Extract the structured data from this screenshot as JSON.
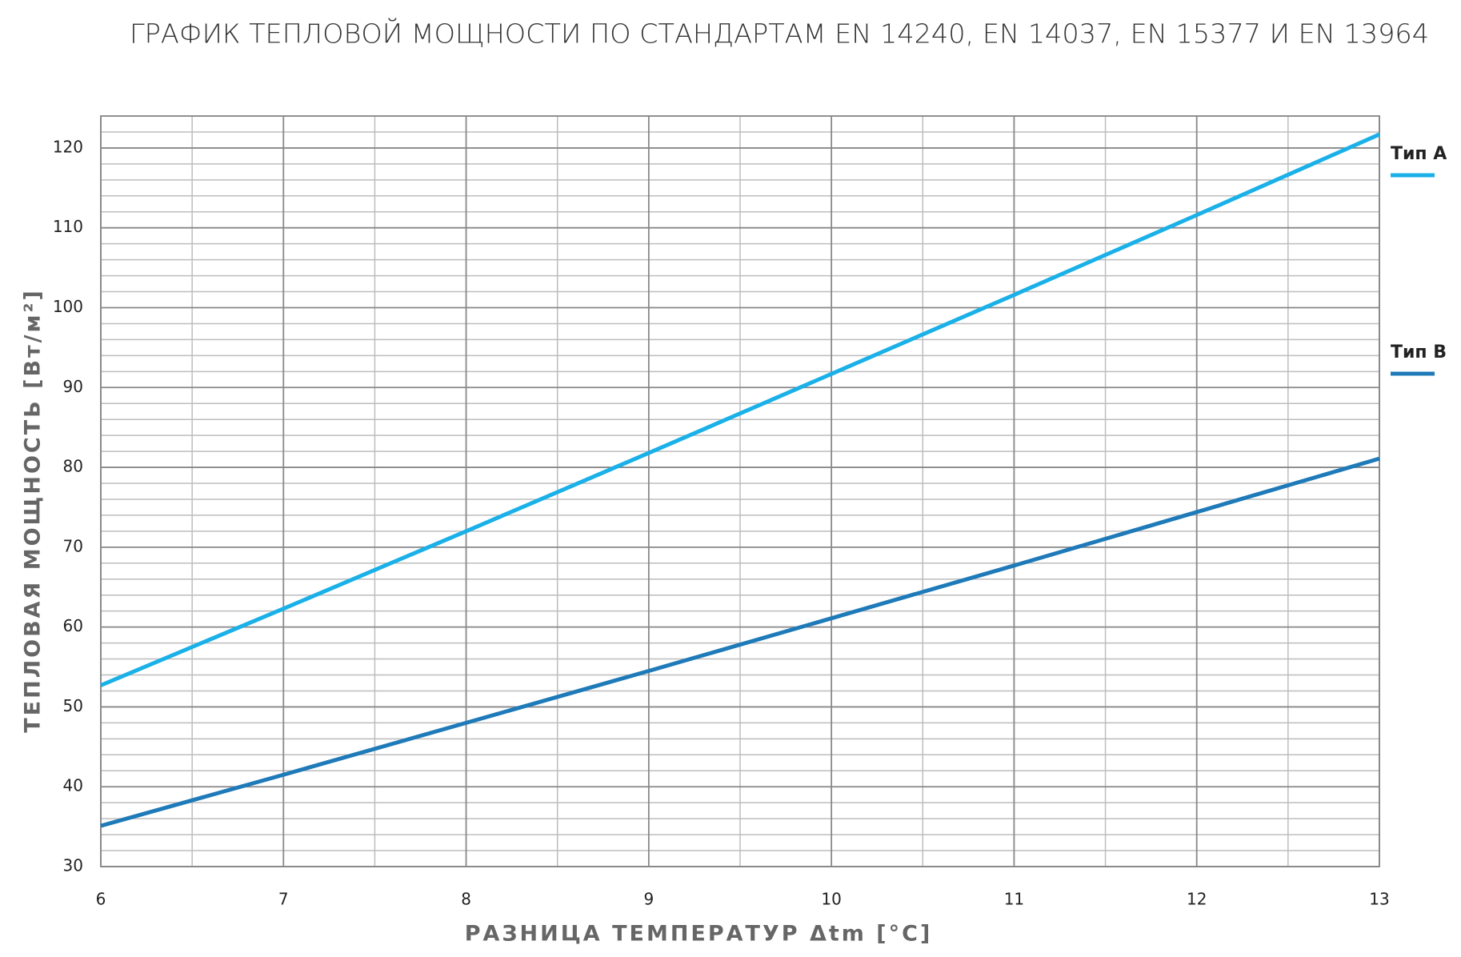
{
  "chart_data": {
    "type": "line",
    "title": "ГРАФИК ТЕПЛОВОЙ МОЩНОСТИ ПО СТАНДАРТАМ EN 14240, EN 14037, EN 15377 И EN 13964",
    "x_label": "РАЗНИЦА ТЕМПЕРАТУР Δtm [°C]",
    "y_label": "ТЕПЛОВАЯ МОЩНОСТЬ  [Вт/м²]",
    "x": [
      6,
      7,
      8,
      9,
      10,
      11,
      12,
      13
    ],
    "series": [
      {
        "name": "Тип A",
        "color": "#1ab0e8",
        "values": [
          52.7,
          62.3,
          72,
          81.8,
          91.7,
          101.6,
          111.6,
          121.7
        ]
      },
      {
        "name": "Тип B",
        "color": "#1e7ab8",
        "values": [
          35.1,
          41.5,
          48,
          54.5,
          61.1,
          67.7,
          74.4,
          81.1
        ]
      }
    ],
    "xlim": [
      6,
      13
    ],
    "xticks": [
      6,
      7,
      8,
      9,
      10,
      11,
      12,
      13
    ],
    "minor_xticks": [
      6.5,
      7.5,
      8.5,
      9.5,
      10.5,
      11.5,
      12.5
    ],
    "ylim": [
      30,
      124
    ],
    "yticks": [
      30,
      40,
      50,
      60,
      70,
      80,
      90,
      100,
      110,
      120
    ],
    "minor_yticks": [
      32,
      34,
      36,
      38,
      42,
      44,
      46,
      48,
      52,
      54,
      56,
      58,
      62,
      64,
      66,
      68,
      72,
      74,
      76,
      78,
      82,
      84,
      86,
      88,
      92,
      94,
      96,
      98,
      102,
      104,
      106,
      108,
      112,
      114,
      116,
      118,
      122,
      124
    ],
    "grid": true,
    "legend": "right"
  }
}
